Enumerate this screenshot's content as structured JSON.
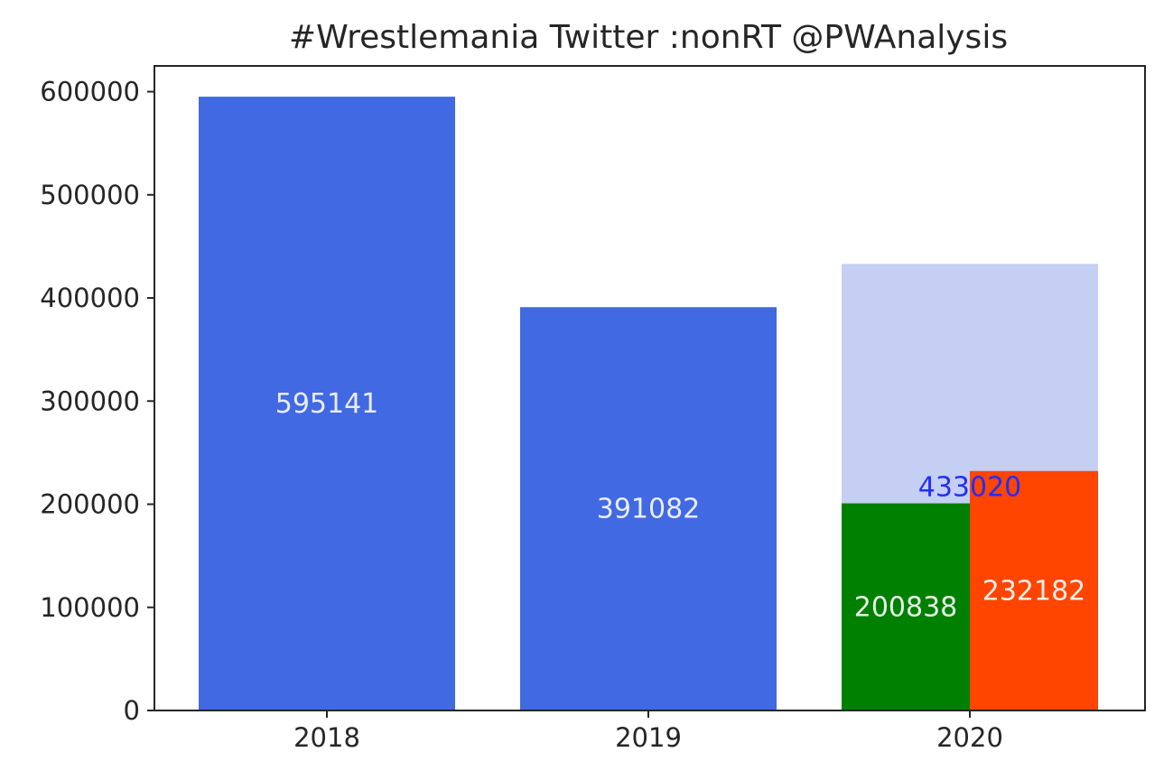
{
  "chart_data": {
    "type": "bar",
    "title": "#Wrestlemania Twitter :nonRT @PWAnalysis",
    "xlabel": "",
    "ylabel": "",
    "categories": [
      "2018",
      "2019",
      "2020"
    ],
    "ylim": [
      0,
      625000
    ],
    "y_ticks": [
      0,
      100000,
      200000,
      300000,
      400000,
      500000,
      600000
    ],
    "y_tick_labels": [
      "0",
      "100000",
      "200000",
      "300000",
      "400000",
      "500000",
      "600000"
    ],
    "grid": false,
    "legend": "none",
    "bars": [
      {
        "category": "2018",
        "part": "full",
        "value": 595141,
        "label": "595141",
        "color": "#4169e1",
        "label_color": "#e8ecff"
      },
      {
        "category": "2019",
        "part": "full",
        "value": 391082,
        "label": "391082",
        "color": "#4169e1",
        "label_color": "#e8ecff"
      },
      {
        "category": "2020",
        "part": "full",
        "value": 433020,
        "label": "433020",
        "color": "#c5cff3",
        "label_color": "#1f2fff"
      },
      {
        "category": "2020",
        "part": "left",
        "value": 200838,
        "label": "200838",
        "color": "#008000",
        "label_color": "#e8f5e8"
      },
      {
        "category": "2020",
        "part": "right",
        "value": 232182,
        "label": "232182",
        "color": "#ff4500",
        "label_color": "#fff0e8"
      }
    ]
  }
}
